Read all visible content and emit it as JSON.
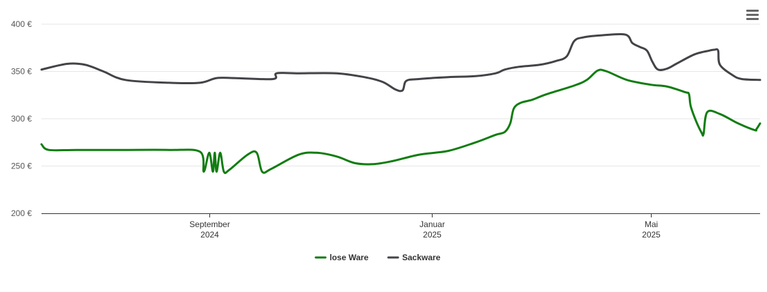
{
  "menu": {
    "icon": "hamburger-menu-icon"
  },
  "chart_data": {
    "type": "line",
    "title": "",
    "xlabel": "",
    "ylabel": "",
    "ylim": [
      200,
      400
    ],
    "xlim": [
      "2024-06-01",
      "2025-06-30"
    ],
    "grid": true,
    "legend_position": "bottom-center",
    "y_ticks": [
      {
        "value": 200,
        "label": "200 €"
      },
      {
        "value": 250,
        "label": "250 €"
      },
      {
        "value": 300,
        "label": "300 €"
      },
      {
        "value": 350,
        "label": "350 €"
      },
      {
        "value": 400,
        "label": "400 €"
      }
    ],
    "x_ticks": [
      {
        "date": "2024-09-01",
        "label": "September",
        "year": "2024"
      },
      {
        "date": "2025-01-01",
        "label": "Januar",
        "year": "2025"
      },
      {
        "date": "2025-05-01",
        "label": "Mai",
        "year": "2025"
      }
    ],
    "series": [
      {
        "name": "lose Ware",
        "color": "#107d10",
        "points": [
          [
            "2024-06-01",
            273
          ],
          [
            "2024-06-05",
            267
          ],
          [
            "2024-06-20",
            267
          ],
          [
            "2024-07-15",
            267
          ],
          [
            "2024-08-10",
            267
          ],
          [
            "2024-08-27",
            265
          ],
          [
            "2024-08-29",
            244
          ],
          [
            "2024-09-01",
            264
          ],
          [
            "2024-09-03",
            244
          ],
          [
            "2024-09-04",
            264
          ],
          [
            "2024-09-05",
            244
          ],
          [
            "2024-09-07",
            264
          ],
          [
            "2024-09-09",
            244
          ],
          [
            "2024-09-12",
            246
          ],
          [
            "2024-09-22",
            262
          ],
          [
            "2024-09-27",
            264
          ],
          [
            "2024-09-30",
            244
          ],
          [
            "2024-10-05",
            247
          ],
          [
            "2024-10-20",
            262
          ],
          [
            "2024-10-30",
            264
          ],
          [
            "2024-11-10",
            260
          ],
          [
            "2024-11-20",
            253
          ],
          [
            "2024-11-30",
            252
          ],
          [
            "2024-12-10",
            255
          ],
          [
            "2024-12-25",
            262
          ],
          [
            "2025-01-10",
            266
          ],
          [
            "2025-01-25",
            275
          ],
          [
            "2025-02-05",
            283
          ],
          [
            "2025-02-10",
            286
          ],
          [
            "2025-02-13",
            295
          ],
          [
            "2025-02-15",
            311
          ],
          [
            "2025-02-19",
            317
          ],
          [
            "2025-02-25",
            320
          ],
          [
            "2025-03-05",
            326
          ],
          [
            "2025-03-20",
            335
          ],
          [
            "2025-03-27",
            341
          ],
          [
            "2025-04-02",
            351
          ],
          [
            "2025-04-07",
            350
          ],
          [
            "2025-04-18",
            341
          ],
          [
            "2025-05-01",
            336
          ],
          [
            "2025-05-10",
            334
          ],
          [
            "2025-05-20",
            328
          ],
          [
            "2025-05-22",
            326
          ],
          [
            "2025-05-23",
            313
          ],
          [
            "2025-05-26",
            297
          ],
          [
            "2025-05-29",
            285
          ],
          [
            "2025-05-30",
            284
          ],
          [
            "2025-06-01",
            307
          ],
          [
            "2025-06-08",
            305
          ],
          [
            "2025-06-18",
            295
          ],
          [
            "2025-06-27",
            288
          ],
          [
            "2025-06-28",
            289
          ],
          [
            "2025-06-30",
            295
          ]
        ]
      },
      {
        "name": "Sackware",
        "color": "#434348",
        "points": [
          [
            "2024-06-01",
            352
          ],
          [
            "2024-06-15",
            358
          ],
          [
            "2024-06-25",
            357
          ],
          [
            "2024-07-05",
            350
          ],
          [
            "2024-07-17",
            341
          ],
          [
            "2024-08-10",
            338
          ],
          [
            "2024-08-27",
            338
          ],
          [
            "2024-09-05",
            343
          ],
          [
            "2024-09-15",
            343
          ],
          [
            "2024-10-06",
            342
          ],
          [
            "2024-10-08",
            348
          ],
          [
            "2024-10-20",
            348
          ],
          [
            "2024-11-10",
            348
          ],
          [
            "2024-11-25",
            344
          ],
          [
            "2024-12-05",
            339
          ],
          [
            "2024-12-12",
            331
          ],
          [
            "2024-12-16",
            330
          ],
          [
            "2024-12-18",
            340
          ],
          [
            "2024-12-25",
            342
          ],
          [
            "2025-01-10",
            344
          ],
          [
            "2025-01-25",
            345
          ],
          [
            "2025-02-05",
            348
          ],
          [
            "2025-02-10",
            352
          ],
          [
            "2025-02-18",
            355
          ],
          [
            "2025-03-01",
            357
          ],
          [
            "2025-03-10",
            361
          ],
          [
            "2025-03-16",
            366
          ],
          [
            "2025-03-20",
            382
          ],
          [
            "2025-03-25",
            386
          ],
          [
            "2025-04-03",
            388
          ],
          [
            "2025-04-17",
            389
          ],
          [
            "2025-04-21",
            380
          ],
          [
            "2025-04-25",
            376
          ],
          [
            "2025-04-29",
            372
          ],
          [
            "2025-05-02",
            360
          ],
          [
            "2025-05-05",
            352
          ],
          [
            "2025-05-10",
            353
          ],
          [
            "2025-05-15",
            358
          ],
          [
            "2025-05-25",
            368
          ],
          [
            "2025-06-02",
            372
          ],
          [
            "2025-06-05",
            373
          ],
          [
            "2025-06-07",
            372
          ],
          [
            "2025-06-08",
            357
          ],
          [
            "2025-06-15",
            346
          ],
          [
            "2025-06-20",
            342
          ],
          [
            "2025-06-30",
            341
          ]
        ]
      }
    ]
  }
}
